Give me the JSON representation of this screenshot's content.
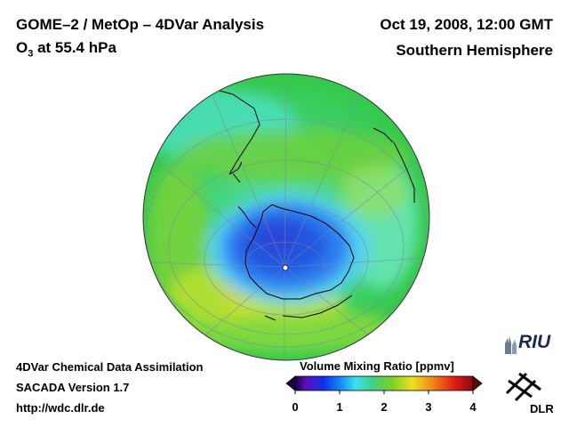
{
  "header": {
    "title": "GOME–2 / MetOp – 4DVar Analysis",
    "quantity_prefix": "O",
    "quantity_sub": "3",
    "quantity_suffix": " at 55.4 hPa",
    "datetime": "Oct 19, 2008, 12:00 GMT",
    "region": "Southern Hemisphere"
  },
  "footer": {
    "line1": "4DVar Chemical Data Assimilation",
    "line2": "SACADA Version 1.7",
    "url": "http://wdc.dlr.de"
  },
  "colorbar": {
    "title": "Volume Mixing Ratio [ppmv]",
    "ticks": [
      "0",
      "1",
      "2",
      "3",
      "4"
    ],
    "min": 0,
    "max": 4
  },
  "logos": {
    "riu": "RIU",
    "dlr": "DLR"
  },
  "map": {
    "projection": "orthographic",
    "view": "Southern Hemisphere",
    "feature": "ozone hole over Antarctica"
  }
}
